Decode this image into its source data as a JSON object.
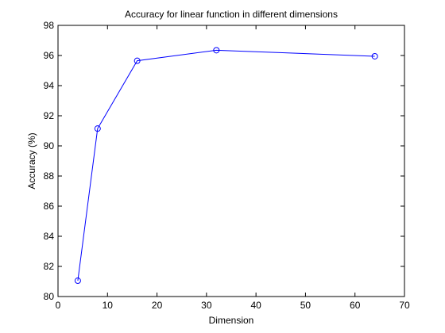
{
  "chart_data": {
    "type": "line",
    "title": "Accuracy for linear function in different dimensions",
    "xlabel": "Dimension",
    "ylabel": "Accuracy (%)",
    "xlim": [
      0,
      70
    ],
    "ylim": [
      80,
      98
    ],
    "xticks": [
      0,
      10,
      20,
      30,
      40,
      50,
      60,
      70
    ],
    "yticks": [
      80,
      82,
      84,
      86,
      88,
      90,
      92,
      94,
      96,
      98
    ],
    "grid": false,
    "series": [
      {
        "x": [
          4,
          8,
          16,
          32,
          64
        ],
        "y": [
          81.05,
          91.15,
          95.65,
          96.35,
          95.95
        ],
        "color": "#0000ff",
        "marker": "circle"
      }
    ]
  }
}
